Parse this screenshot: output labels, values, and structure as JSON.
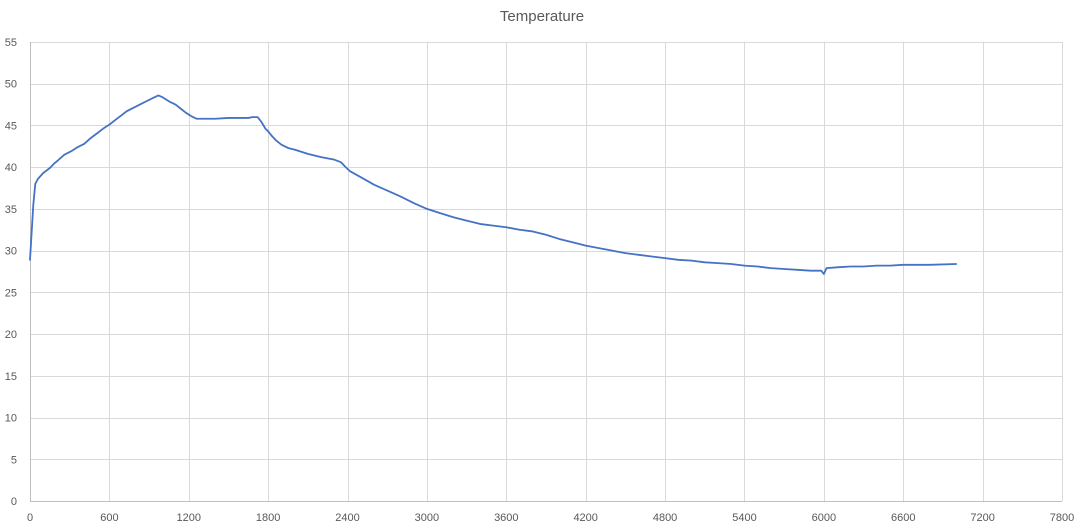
{
  "chart_data": {
    "type": "scatter",
    "title": "Temperature",
    "xlabel": "",
    "ylabel": "",
    "xlim": [
      0,
      7800
    ],
    "ylim": [
      0,
      55
    ],
    "x_ticks": [
      0,
      600,
      1200,
      1800,
      2400,
      3000,
      3600,
      4200,
      4800,
      5400,
      6000,
      6600,
      7200,
      7800
    ],
    "y_ticks": [
      0,
      5,
      10,
      15,
      20,
      25,
      30,
      35,
      40,
      45,
      50,
      55
    ],
    "grid": true,
    "legend": "none",
    "series": [
      {
        "color": "#4472c4",
        "style": "smooth-lines-no-markers",
        "x": [
          0,
          25,
          40,
          60,
          100,
          150,
          180,
          210,
          260,
          310,
          360,
          410,
          460,
          510,
          560,
          600,
          640,
          690,
          730,
          780,
          830,
          880,
          930,
          970,
          1000,
          1030,
          1060,
          1100,
          1140,
          1180,
          1220,
          1260,
          1300,
          1400,
          1500,
          1600,
          1650,
          1680,
          1720,
          1750,
          1780,
          1800,
          1830,
          1860,
          1900,
          1950,
          2000,
          2100,
          2200,
          2300,
          2350,
          2380,
          2420,
          2500,
          2600,
          2700,
          2800,
          2900,
          3000,
          3100,
          3200,
          3300,
          3400,
          3500,
          3600,
          3700,
          3800,
          3900,
          4000,
          4100,
          4200,
          4300,
          4400,
          4500,
          4600,
          4700,
          4800,
          4900,
          5000,
          5100,
          5200,
          5300,
          5400,
          5500,
          5600,
          5700,
          5800,
          5900,
          5980,
          6000,
          6020,
          6100,
          6200,
          6300,
          6400,
          6500,
          6600,
          6700,
          6800,
          7000
        ],
        "y": [
          28.9,
          35.5,
          38.0,
          38.6,
          39.3,
          39.9,
          40.4,
          40.8,
          41.5,
          41.9,
          42.4,
          42.8,
          43.5,
          44.1,
          44.7,
          45.1,
          45.6,
          46.2,
          46.7,
          47.1,
          47.5,
          47.9,
          48.3,
          48.6,
          48.4,
          48.1,
          47.8,
          47.5,
          47.0,
          46.5,
          46.1,
          45.8,
          45.8,
          45.8,
          45.9,
          45.9,
          45.9,
          46.0,
          46.0,
          45.4,
          44.6,
          44.3,
          43.7,
          43.2,
          42.7,
          42.3,
          42.1,
          41.6,
          41.2,
          40.9,
          40.6,
          40.1,
          39.5,
          38.8,
          37.9,
          37.2,
          36.5,
          35.7,
          35.0,
          34.5,
          34.0,
          33.6,
          33.2,
          33.0,
          32.8,
          32.5,
          32.3,
          31.9,
          31.4,
          31.0,
          30.6,
          30.3,
          30.0,
          29.7,
          29.5,
          29.3,
          29.1,
          28.9,
          28.8,
          28.6,
          28.5,
          28.4,
          28.2,
          28.1,
          27.9,
          27.8,
          27.7,
          27.6,
          27.6,
          27.2,
          27.9,
          28.0,
          28.1,
          28.1,
          28.2,
          28.2,
          28.3,
          28.3,
          28.3,
          28.4
        ]
      }
    ]
  }
}
